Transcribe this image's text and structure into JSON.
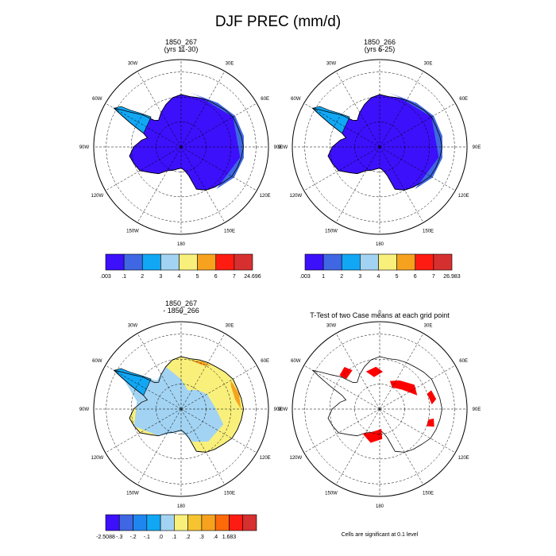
{
  "title": "DJF PREC (mm/d)",
  "lon_labels": [
    "0",
    "30E",
    "60E",
    "90E",
    "120E",
    "150E",
    "180",
    "150W",
    "120W",
    "90W",
    "60W",
    "30W"
  ],
  "colors": {
    "deep_blue": "#3c10fa",
    "blue": "#3f67e3",
    "light_blue": "#11a7f4",
    "pale_blue": "#a3d3f2",
    "pale_yellow": "#f9f07c",
    "orange": "#f6a21e",
    "red": "#fe1c12",
    "dark_red": "#d62f2f",
    "significant": "#ff0000"
  },
  "chart_data": [
    {
      "type": "heatmap",
      "panel": "top-left",
      "title": "1850_267",
      "subtitle": "(yrs 11-30)",
      "projection": "south-polar-stereographic",
      "field": "precipitation",
      "dominant_value_range": [
        0.003,
        0.1
      ],
      "colorbar": {
        "labels": [
          ".003",
          ".1",
          "2",
          "3",
          "4",
          "5",
          "6",
          "7",
          "24.696"
        ],
        "colors": [
          "#3c10fa",
          "#3f67e3",
          "#11a7f4",
          "#a3d3f2",
          "#f9f07c",
          "#f6a21e",
          "#fe1c12",
          "#d62f2f"
        ]
      }
    },
    {
      "type": "heatmap",
      "panel": "top-right",
      "title": "1850_266",
      "subtitle": "(yrs 6-25)",
      "projection": "south-polar-stereographic",
      "field": "precipitation",
      "dominant_value_range": [
        0.003,
        0.1
      ],
      "colorbar": {
        "labels": [
          ".003",
          "1",
          "2",
          "3",
          "4",
          "5",
          "6",
          "7",
          "26.983"
        ],
        "colors": [
          "#3c10fa",
          "#3f67e3",
          "#11a7f4",
          "#a3d3f2",
          "#f9f07c",
          "#f6a21e",
          "#fe1c12",
          "#d62f2f"
        ]
      }
    },
    {
      "type": "heatmap",
      "panel": "bottom-left",
      "title": "1850_267",
      "subtitle": "- 1850_266",
      "projection": "south-polar-stereographic",
      "field": "difference",
      "colorbar": {
        "labels": [
          "-2.5088",
          "-.3",
          "-.2",
          "-.1",
          ".0",
          ".1",
          ".2",
          ".3",
          ".4",
          "1.683"
        ],
        "colors": [
          "#3c10fa",
          "#3f67e3",
          "#1f86f0",
          "#11a7f4",
          "#a3d3f2",
          "#f9f07c",
          "#f6c431",
          "#f6a21e",
          "#fd6a0a",
          "#fe1c12",
          "#d62f2f"
        ]
      }
    },
    {
      "type": "heatmap",
      "panel": "bottom-right",
      "title": "T-Test of two Case means at each grid point",
      "projection": "south-polar-stereographic",
      "field": "significance",
      "note": "Cells are significant at 0.1 level"
    }
  ]
}
